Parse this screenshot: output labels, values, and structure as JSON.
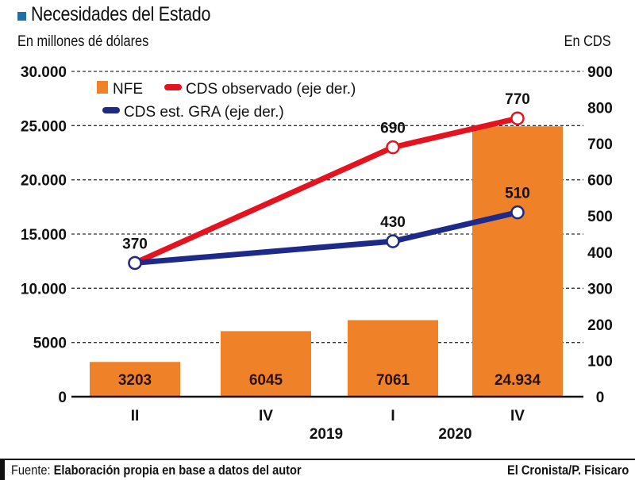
{
  "header": {
    "title": "Necesidades del Estado",
    "subtitle_left": "En millones dé dólares",
    "subtitle_right": "En CDS",
    "accent_color": "#1f6fa8"
  },
  "footer": {
    "source_label": "Fuente:",
    "source_text": "Elaboración propia en base a datos del autor",
    "credit": "El Cronista/P. Fisicaro"
  },
  "chart_data": {
    "type": "bar",
    "title": "Necesidades del Estado",
    "xlabel": "",
    "ylabel": "En millones dé dólares",
    "y2label": "En CDS",
    "categories": [
      "II",
      "IV",
      "I",
      "IV"
    ],
    "category_groups": [
      {
        "label": "2019",
        "span": [
          "II",
          "IV"
        ]
      },
      {
        "label": "2020",
        "span": [
          "I",
          "IV"
        ]
      }
    ],
    "ylim": [
      0,
      30000
    ],
    "y2lim": [
      0,
      900
    ],
    "y_ticks": [
      0,
      5000,
      10000,
      15000,
      20000,
      25000,
      30000
    ],
    "y_tick_labels": [
      "0",
      "5000",
      "10.000",
      "15.000",
      "20.000",
      "25.000",
      "30.000"
    ],
    "y2_ticks": [
      0,
      100,
      200,
      300,
      400,
      500,
      600,
      700,
      800,
      900
    ],
    "y2_tick_labels": [
      "0",
      "100",
      "200",
      "300",
      "400",
      "500",
      "600",
      "700",
      "800",
      "900"
    ],
    "grid": true,
    "legend_position": "top-left",
    "series": [
      {
        "name": "NFE",
        "kind": "bar",
        "axis": "left",
        "color": "#ef8129",
        "values": [
          3203,
          6045,
          7061,
          24934
        ],
        "labels": [
          "3203",
          "6045",
          "7061",
          "24.934"
        ]
      },
      {
        "name": "CDS observado (eje der.)",
        "kind": "line",
        "axis": "right",
        "color": "#e3141f",
        "values": [
          370,
          null,
          690,
          770
        ],
        "labels": [
          "",
          "",
          "690",
          "770"
        ]
      },
      {
        "name": "CDS est. GRA (eje der.)",
        "kind": "line",
        "axis": "right",
        "color": "#1d2a8a",
        "values": [
          370,
          null,
          430,
          510
        ],
        "labels": [
          "370",
          "",
          "430",
          "510"
        ]
      }
    ]
  }
}
